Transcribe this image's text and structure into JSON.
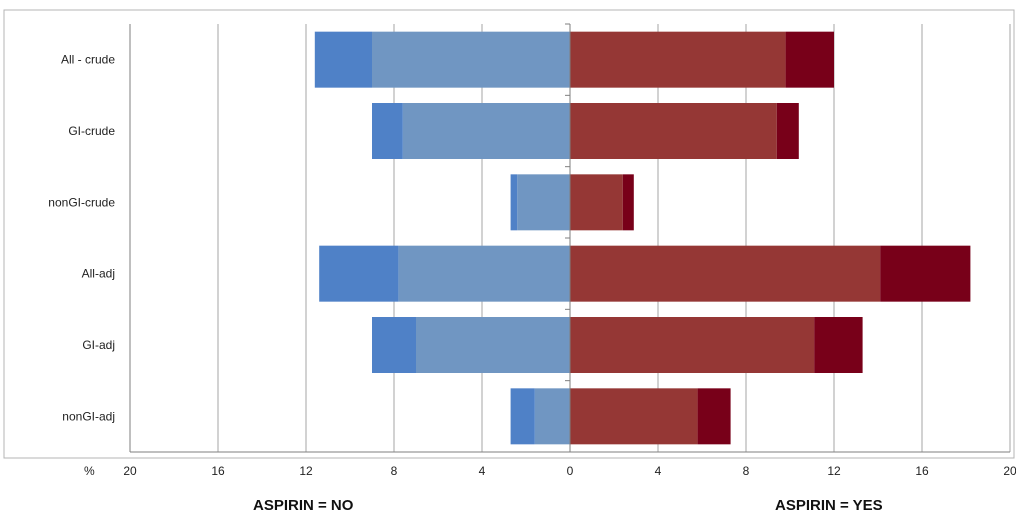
{
  "chart_data": {
    "type": "bar",
    "orientation": "horizontal",
    "layout": "diverging-stacked",
    "title": "",
    "xlabel": "%",
    "xlim": [
      -20,
      20
    ],
    "x_ticks": [
      -20,
      -16,
      -12,
      -8,
      -4,
      0,
      4,
      8,
      12,
      16,
      20
    ],
    "x_tick_labels": [
      "20",
      "16",
      "12",
      "8",
      "4",
      "0",
      "4",
      "8",
      "12",
      "16",
      "20"
    ],
    "categories": [
      "All - crude",
      "GI-crude",
      "nonGI-crude",
      "All-adj",
      "GI-adj",
      "nonGI-adj"
    ],
    "series": [
      {
        "side": "left",
        "segment": "inner",
        "color": "#7096C2",
        "values": [
          9.0,
          7.6,
          2.4,
          7.8,
          7.0,
          1.6
        ]
      },
      {
        "side": "left",
        "segment": "outer",
        "color": "#4F81C7",
        "values": [
          2.6,
          1.4,
          0.3,
          3.6,
          2.0,
          1.1
        ]
      },
      {
        "side": "right",
        "segment": "inner",
        "color": "#953735",
        "values": [
          9.8,
          9.4,
          2.4,
          14.1,
          11.1,
          5.8
        ]
      },
      {
        "side": "right",
        "segment": "outer",
        "color": "#780019",
        "values": [
          2.2,
          1.0,
          0.5,
          4.1,
          2.2,
          1.5
        ]
      }
    ],
    "grid": true,
    "legend": "none",
    "side_labels": {
      "left": "ASPIRIN = NO",
      "right": "ASPIRIN = YES"
    }
  }
}
